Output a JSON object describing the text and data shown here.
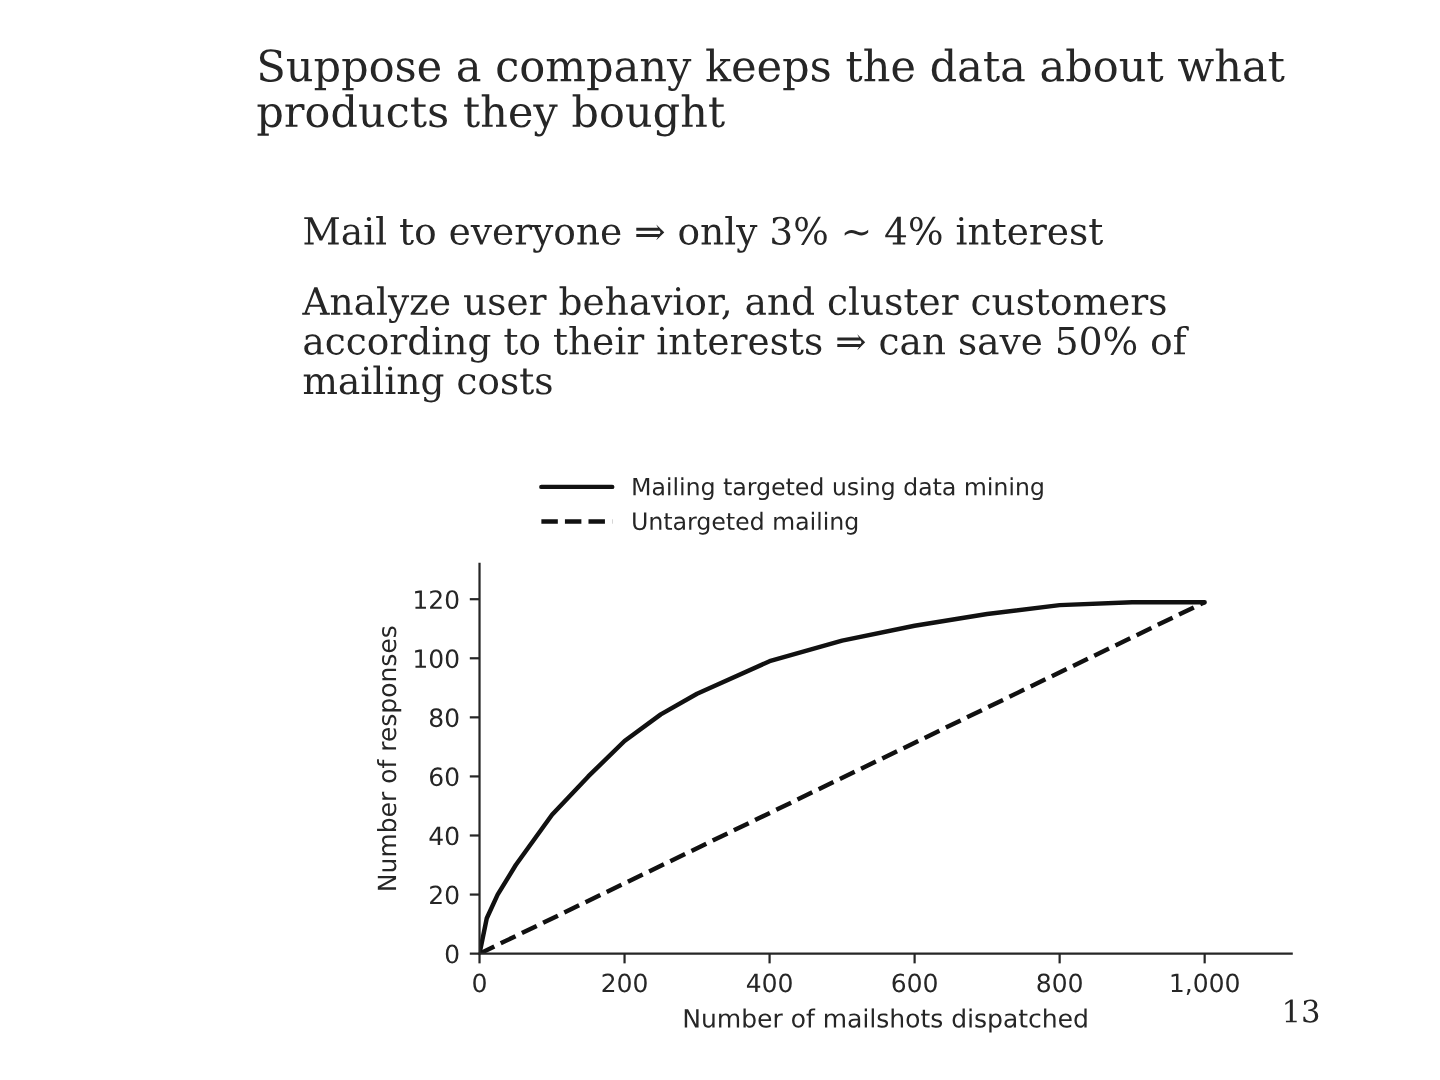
{
  "chart_data": {
    "type": "line",
    "xlabel": "Number of mailshots dispatched",
    "ylabel": "Number of responses",
    "annotations": [
      "Suppose a company keeps the data about what\nproducts they bought",
      "Mail to everyone ⇒ only 3% ~ 4% interest",
      "Analyze user behavior, and cluster customers\naccording to their interests ⇒ can save 50% of\nmailing costs",
      "13"
    ],
    "series": [
      {
        "name": "Mailing targeted using data mining",
        "color": "#111111",
        "line_style": "solid",
        "x": [
          0,
          10,
          25,
          50,
          100,
          150,
          200,
          250,
          300,
          400,
          500,
          600,
          700,
          800,
          900,
          1000
        ],
        "values": [
          0,
          12,
          20,
          30,
          47,
          60,
          72,
          81,
          88,
          99,
          106,
          111,
          115,
          118,
          119,
          119
        ]
      },
      {
        "name": "Untargeted mailing",
        "color": "#111111",
        "line_style": "dashed",
        "x": [
          0,
          1000
        ],
        "values": [
          0,
          119
        ]
      }
    ],
    "xlim": [
      0,
      1120
    ],
    "ylim": [
      0,
      132
    ],
    "xticks": [
      0,
      200,
      400,
      600,
      800,
      {
        "value": 1000,
        "label": "1,000"
      }
    ],
    "yticks": [
      0,
      20,
      40,
      60,
      80,
      100,
      120
    ],
    "grid": false,
    "legend": "top"
  }
}
